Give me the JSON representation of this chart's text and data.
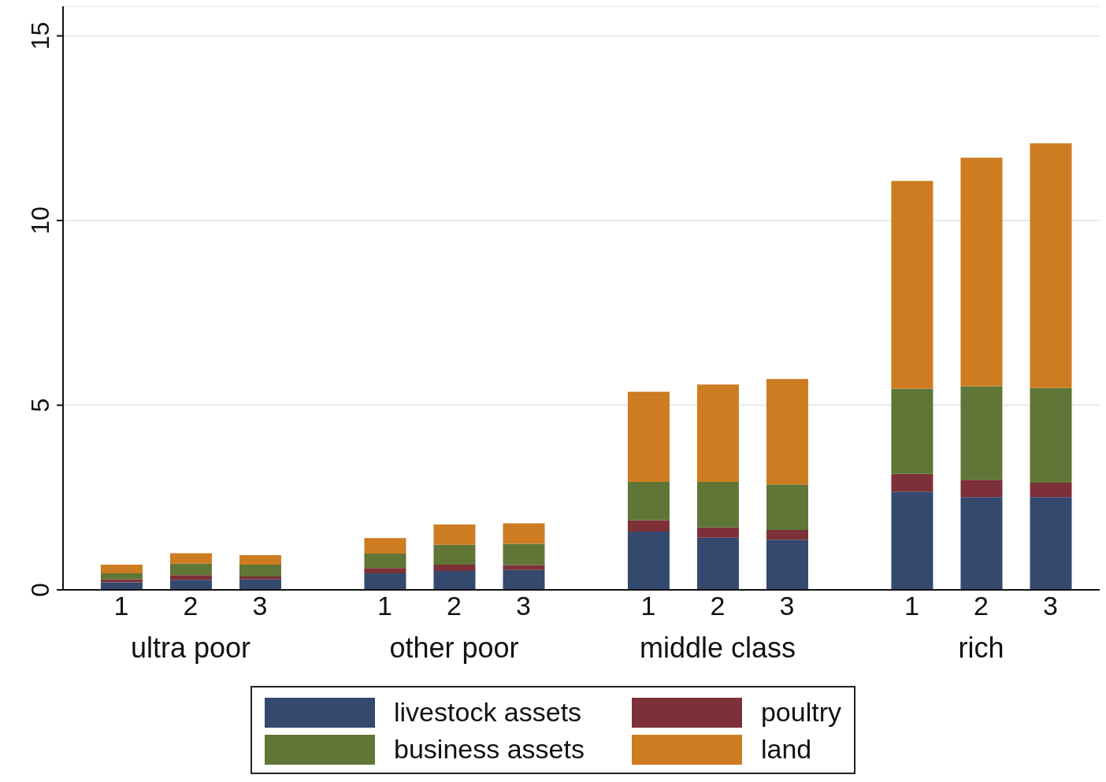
{
  "chart_data": {
    "type": "bar",
    "stacked": true,
    "categories": [
      "1",
      "2",
      "3",
      "1",
      "2",
      "3",
      "1",
      "2",
      "3",
      "1",
      "2",
      "3"
    ],
    "series": [
      {
        "name": "livestock assets",
        "color": "#33496e",
        "values": [
          0.2,
          0.27,
          0.28,
          0.45,
          0.51,
          0.54,
          1.58,
          1.41,
          1.36,
          2.66,
          2.51,
          2.51
        ]
      },
      {
        "name": "poultry",
        "color": "#7e3038",
        "values": [
          0.09,
          0.13,
          0.08,
          0.14,
          0.17,
          0.13,
          0.3,
          0.28,
          0.26,
          0.48,
          0.47,
          0.39
        ]
      },
      {
        "name": "business assets",
        "color": "#5f7636",
        "values": [
          0.16,
          0.31,
          0.32,
          0.39,
          0.54,
          0.58,
          1.04,
          1.23,
          1.23,
          2.31,
          2.53,
          2.57
        ]
      },
      {
        "name": "land",
        "color": "#cd7c22",
        "values": [
          0.23,
          0.28,
          0.26,
          0.42,
          0.55,
          0.55,
          2.44,
          2.64,
          2.86,
          5.62,
          6.19,
          6.62
        ]
      }
    ],
    "annotations": [
      "ultra poor",
      "other poor",
      "middle class",
      "rich"
    ],
    "ylim": [
      0,
      15.8
    ],
    "yticks": [
      0,
      5,
      10,
      15
    ],
    "grid": "y",
    "legend": "bottom"
  }
}
